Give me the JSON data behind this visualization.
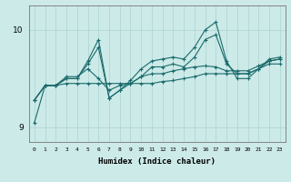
{
  "xlabel": "Humidex (Indice chaleur)",
  "bg_color": "#cceae8",
  "line_color": "#1a6b6b",
  "grid_color": "#aad4d2",
  "xlim": [
    -0.5,
    23.5
  ],
  "ylim": [
    8.85,
    10.25
  ],
  "yticks": [
    9,
    10
  ],
  "xticks": [
    0,
    1,
    2,
    3,
    4,
    5,
    6,
    7,
    8,
    9,
    10,
    11,
    12,
    13,
    14,
    15,
    16,
    17,
    18,
    19,
    20,
    21,
    22,
    23
  ],
  "series": [
    [
      9.28,
      9.43,
      9.43,
      9.45,
      9.45,
      9.45,
      9.45,
      9.45,
      9.45,
      9.45,
      9.45,
      9.45,
      9.47,
      9.48,
      9.5,
      9.52,
      9.55,
      9.55,
      9.55,
      9.55,
      9.55,
      9.6,
      9.65,
      9.65
    ],
    [
      9.05,
      9.43,
      9.43,
      9.52,
      9.52,
      9.6,
      9.5,
      9.38,
      9.43,
      9.45,
      9.52,
      9.55,
      9.55,
      9.58,
      9.6,
      9.62,
      9.63,
      9.62,
      9.58,
      9.58,
      9.58,
      9.63,
      9.68,
      9.7
    ],
    [
      9.28,
      9.43,
      9.43,
      9.5,
      9.5,
      9.65,
      9.82,
      9.3,
      9.38,
      9.45,
      9.52,
      9.62,
      9.62,
      9.65,
      9.62,
      9.72,
      9.9,
      9.95,
      9.65,
      9.55,
      9.55,
      9.6,
      9.68,
      9.7
    ],
    [
      9.28,
      9.43,
      9.43,
      9.5,
      9.5,
      9.68,
      9.9,
      9.3,
      9.38,
      9.48,
      9.6,
      9.68,
      9.7,
      9.72,
      9.7,
      9.82,
      10.0,
      10.08,
      9.68,
      9.5,
      9.5,
      9.6,
      9.7,
      9.72
    ]
  ]
}
